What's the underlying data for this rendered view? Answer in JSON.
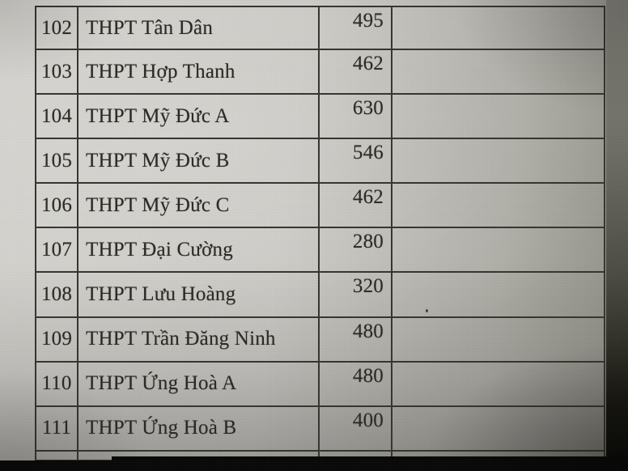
{
  "table": {
    "rows": [
      {
        "index": "102",
        "name": "THPT Tân Dân",
        "value": "495"
      },
      {
        "index": "103",
        "name": "THPT Hợp Thanh",
        "value": "462"
      },
      {
        "index": "104",
        "name": "THPT Mỹ Đức A",
        "value": "630"
      },
      {
        "index": "105",
        "name": "THPT Mỹ Đức B",
        "value": "546"
      },
      {
        "index": "106",
        "name": "THPT Mỹ Đức C",
        "value": "462"
      },
      {
        "index": "107",
        "name": "THPT Đại Cường",
        "value": "280"
      },
      {
        "index": "108",
        "name": "THPT Lưu Hoàng",
        "value": "320"
      },
      {
        "index": "109",
        "name": "THPT Trần Đăng Ninh",
        "value": "480"
      },
      {
        "index": "110",
        "name": "THPT Ứng Hoà A",
        "value": "480"
      },
      {
        "index": "111",
        "name": "THPT Ứng Hoà B",
        "value": "400"
      }
    ]
  },
  "colors": {
    "paper": "#cbcac5",
    "table_line": "#35332d",
    "ink": "#292721",
    "bottom_bar": "#070705",
    "right_edge_top": "#85847c",
    "right_edge_bottom": "#060604"
  }
}
